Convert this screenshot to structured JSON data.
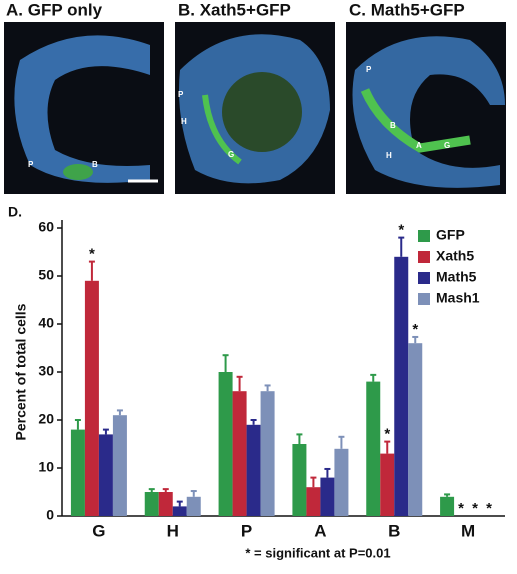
{
  "panels": [
    {
      "title": "A. GFP only",
      "labels": [
        "P",
        "B"
      ]
    },
    {
      "title": "B. Xath5+GFP",
      "labels": [
        "P",
        "H",
        "G"
      ]
    },
    {
      "title": "C. Math5+GFP",
      "labels": [
        "P",
        "B",
        "H",
        "A",
        "G"
      ]
    }
  ],
  "chart_data": {
    "type": "bar",
    "panel_label": "D.",
    "y_label": "Percent of total cells",
    "categories": [
      "G",
      "H",
      "P",
      "A",
      "B",
      "M"
    ],
    "series": [
      {
        "name": "GFP",
        "color": "#2e9a4a",
        "values": [
          18,
          5,
          30,
          15,
          28,
          4
        ],
        "errors": [
          2,
          0.6,
          3.5,
          2,
          1.4,
          0.5
        ],
        "significant": [
          false,
          false,
          false,
          false,
          false,
          false
        ]
      },
      {
        "name": "Xath5",
        "color": "#c0283a",
        "values": [
          49,
          5,
          26,
          6,
          13,
          0
        ],
        "errors": [
          4,
          0.6,
          3,
          2,
          2.5,
          0
        ],
        "significant": [
          true,
          false,
          false,
          false,
          true,
          true
        ]
      },
      {
        "name": "Math5",
        "color": "#2a2a8a",
        "values": [
          17,
          2,
          19,
          8,
          54,
          0
        ],
        "errors": [
          1,
          1,
          1,
          1.8,
          4,
          0
        ],
        "significant": [
          false,
          false,
          false,
          false,
          true,
          true
        ]
      },
      {
        "name": "Mash1",
        "color": "#7d90b8",
        "values": [
          21,
          4,
          26,
          14,
          36,
          0
        ],
        "errors": [
          1,
          1.2,
          1.2,
          2.5,
          1.3,
          0
        ],
        "significant": [
          false,
          false,
          false,
          false,
          true,
          true
        ]
      }
    ],
    "ylim": [
      0,
      60
    ],
    "yticks": [
      0,
      10,
      20,
      30,
      40,
      50,
      60
    ],
    "significance_marker": "*",
    "note": "* = significant at P=0.01",
    "legend": "upper right"
  }
}
